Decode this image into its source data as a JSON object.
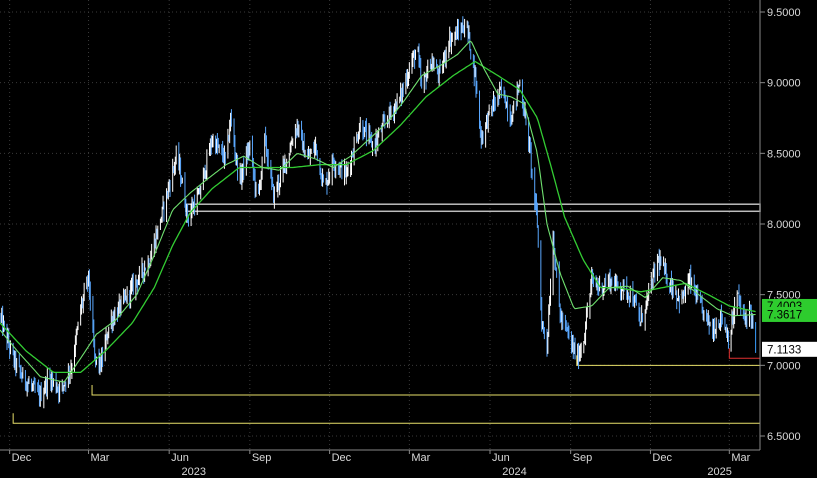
{
  "chart_data": {
    "type": "candlestick",
    "title": "",
    "xlabel": "",
    "ylabel": "",
    "ylim": [
      6.45,
      9.58
    ],
    "grid": true,
    "y_ticks": [
      "9.5000",
      "9.0000",
      "8.5000",
      "8.0000",
      "7.5000",
      "7.0000",
      "6.5000"
    ],
    "y_tick_values": [
      9.5,
      9.0,
      8.5,
      8.0,
      7.5,
      7.0,
      6.5
    ],
    "x_month_ticks": [
      "Dec",
      "Mar",
      "Jun",
      "Sep",
      "Dec",
      "Mar",
      "Jun",
      "Sep",
      "Dec",
      "Mar"
    ],
    "x_month_dates": [
      "2022-12-01",
      "2023-03-01",
      "2023-06-01",
      "2023-09-01",
      "2023-12-01",
      "2024-03-01",
      "2024-06-01",
      "2024-09-01",
      "2024-12-01",
      "2025-03-01"
    ],
    "x_year_labels": [
      "2023",
      "2024",
      "2025"
    ],
    "x_year_dates": [
      "2023-07-01",
      "2024-07-01",
      "2025-02-20"
    ],
    "x_range": [
      "2022-11-20",
      "2025-04-05"
    ],
    "price_keypoints": [
      [
        "2022-11-20",
        7.35
      ],
      [
        "2022-12-05",
        7.05
      ],
      [
        "2022-12-15",
        6.92
      ],
      [
        "2022-12-25",
        6.85
      ],
      [
        "2023-01-05",
        6.78
      ],
      [
        "2023-01-15",
        6.92
      ],
      [
        "2023-01-28",
        6.82
      ],
      [
        "2023-02-10",
        7.0
      ],
      [
        "2023-02-20",
        7.4
      ],
      [
        "2023-03-01",
        7.62
      ],
      [
        "2023-03-08",
        7.05
      ],
      [
        "2023-03-15",
        7.0
      ],
      [
        "2023-03-25",
        7.3
      ],
      [
        "2023-04-10",
        7.45
      ],
      [
        "2023-04-25",
        7.6
      ],
      [
        "2023-05-10",
        7.75
      ],
      [
        "2023-05-25",
        8.1
      ],
      [
        "2023-06-10",
        8.5
      ],
      [
        "2023-06-22",
        8.05
      ],
      [
        "2023-07-05",
        8.2
      ],
      [
        "2023-07-20",
        8.6
      ],
      [
        "2023-08-05",
        8.45
      ],
      [
        "2023-08-10",
        8.75
      ],
      [
        "2023-08-20",
        8.3
      ],
      [
        "2023-09-01",
        8.55
      ],
      [
        "2023-09-10",
        8.15
      ],
      [
        "2023-09-18",
        8.6
      ],
      [
        "2023-09-28",
        8.2
      ],
      [
        "2023-10-10",
        8.4
      ],
      [
        "2023-10-25",
        8.7
      ],
      [
        "2023-11-05",
        8.45
      ],
      [
        "2023-11-15",
        8.55
      ],
      [
        "2023-11-25",
        8.25
      ],
      [
        "2023-12-05",
        8.45
      ],
      [
        "2023-12-20",
        8.35
      ],
      [
        "2024-01-05",
        8.7
      ],
      [
        "2024-01-20",
        8.55
      ],
      [
        "2024-02-05",
        8.75
      ],
      [
        "2024-02-20",
        8.9
      ],
      [
        "2024-03-01",
        9.1
      ],
      [
        "2024-03-10",
        9.25
      ],
      [
        "2024-03-15",
        8.95
      ],
      [
        "2024-03-25",
        9.15
      ],
      [
        "2024-04-05",
        9.05
      ],
      [
        "2024-04-15",
        9.3
      ],
      [
        "2024-04-25",
        9.35
      ],
      [
        "2024-05-05",
        9.42
      ],
      [
        "2024-05-15",
        9.05
      ],
      [
        "2024-05-22",
        8.6
      ],
      [
        "2024-06-01",
        8.8
      ],
      [
        "2024-06-15",
        8.95
      ],
      [
        "2024-06-25",
        8.75
      ],
      [
        "2024-07-05",
        9.0
      ],
      [
        "2024-07-15",
        8.6
      ],
      [
        "2024-07-25",
        8.0
      ],
      [
        "2024-07-30",
        7.3
      ],
      [
        "2024-08-05",
        7.15
      ],
      [
        "2024-08-12",
        7.9
      ],
      [
        "2024-08-20",
        7.35
      ],
      [
        "2024-08-30",
        7.2
      ],
      [
        "2024-09-08",
        7.05
      ],
      [
        "2024-09-15",
        7.15
      ],
      [
        "2024-09-25",
        7.6
      ],
      [
        "2024-10-05",
        7.55
      ],
      [
        "2024-10-15",
        7.6
      ],
      [
        "2024-10-30",
        7.55
      ],
      [
        "2024-11-10",
        7.5
      ],
      [
        "2024-11-20",
        7.3
      ],
      [
        "2024-12-01",
        7.55
      ],
      [
        "2024-12-10",
        7.75
      ],
      [
        "2024-12-20",
        7.62
      ],
      [
        "2025-01-05",
        7.45
      ],
      [
        "2025-01-15",
        7.6
      ],
      [
        "2025-01-28",
        7.4
      ],
      [
        "2025-02-10",
        7.25
      ],
      [
        "2025-02-20",
        7.35
      ],
      [
        "2025-03-01",
        7.18
      ],
      [
        "2025-03-10",
        7.5
      ],
      [
        "2025-03-18",
        7.32
      ],
      [
        "2025-03-25",
        7.4
      ],
      [
        "2025-03-31",
        7.1133
      ]
    ],
    "moving_average_fast_keypoints": [
      [
        "2022-11-20",
        7.25
      ],
      [
        "2022-12-10",
        7.1
      ],
      [
        "2023-01-05",
        6.92
      ],
      [
        "2023-02-01",
        6.88
      ],
      [
        "2023-02-20",
        7.05
      ],
      [
        "2023-03-10",
        7.22
      ],
      [
        "2023-04-01",
        7.32
      ],
      [
        "2023-04-25",
        7.5
      ],
      [
        "2023-05-15",
        7.78
      ],
      [
        "2023-06-05",
        8.1
      ],
      [
        "2023-06-25",
        8.22
      ],
      [
        "2023-07-15",
        8.32
      ],
      [
        "2023-08-05",
        8.42
      ],
      [
        "2023-08-25",
        8.48
      ],
      [
        "2023-09-15",
        8.4
      ],
      [
        "2023-10-05",
        8.38
      ],
      [
        "2023-10-25",
        8.5
      ],
      [
        "2023-11-15",
        8.46
      ],
      [
        "2023-12-05",
        8.4
      ],
      [
        "2023-12-25",
        8.48
      ],
      [
        "2024-01-15",
        8.6
      ],
      [
        "2024-02-05",
        8.72
      ],
      [
        "2024-02-25",
        8.88
      ],
      [
        "2024-03-15",
        9.05
      ],
      [
        "2024-04-05",
        9.12
      ],
      [
        "2024-04-25",
        9.2
      ],
      [
        "2024-05-10",
        9.3
      ],
      [
        "2024-05-25",
        9.1
      ],
      [
        "2024-06-10",
        8.92
      ],
      [
        "2024-06-25",
        8.9
      ],
      [
        "2024-07-10",
        8.85
      ],
      [
        "2024-07-25",
        8.5
      ],
      [
        "2024-08-05",
        8.0
      ],
      [
        "2024-08-20",
        7.65
      ],
      [
        "2024-09-05",
        7.4
      ],
      [
        "2024-09-25",
        7.42
      ],
      [
        "2024-10-15",
        7.55
      ],
      [
        "2024-11-05",
        7.56
      ],
      [
        "2024-11-25",
        7.48
      ],
      [
        "2024-12-15",
        7.62
      ],
      [
        "2025-01-05",
        7.6
      ],
      [
        "2025-01-25",
        7.5
      ],
      [
        "2025-02-15",
        7.4
      ],
      [
        "2025-03-05",
        7.35
      ],
      [
        "2025-03-31",
        7.36
      ]
    ],
    "moving_average_slow_keypoints": [
      [
        "2022-11-20",
        7.3
      ],
      [
        "2022-12-20",
        7.1
      ],
      [
        "2023-01-20",
        6.95
      ],
      [
        "2023-02-20",
        6.95
      ],
      [
        "2023-03-20",
        7.1
      ],
      [
        "2023-04-20",
        7.3
      ],
      [
        "2023-05-15",
        7.55
      ],
      [
        "2023-06-05",
        7.85
      ],
      [
        "2023-06-25",
        8.08
      ],
      [
        "2023-07-20",
        8.25
      ],
      [
        "2023-08-20",
        8.4
      ],
      [
        "2023-09-20",
        8.4
      ],
      [
        "2023-10-20",
        8.4
      ],
      [
        "2023-11-20",
        8.42
      ],
      [
        "2023-12-20",
        8.42
      ],
      [
        "2024-01-20",
        8.52
      ],
      [
        "2024-02-20",
        8.7
      ],
      [
        "2024-03-20",
        8.9
      ],
      [
        "2024-04-20",
        9.05
      ],
      [
        "2024-05-15",
        9.15
      ],
      [
        "2024-06-10",
        9.05
      ],
      [
        "2024-07-05",
        8.95
      ],
      [
        "2024-07-25",
        8.75
      ],
      [
        "2024-08-10",
        8.4
      ],
      [
        "2024-08-25",
        8.05
      ],
      [
        "2024-09-15",
        7.75
      ],
      [
        "2024-10-05",
        7.55
      ],
      [
        "2024-10-25",
        7.55
      ],
      [
        "2024-11-20",
        7.52
      ],
      [
        "2024-12-15",
        7.55
      ],
      [
        "2025-01-10",
        7.58
      ],
      [
        "2025-02-05",
        7.5
      ],
      [
        "2025-03-01",
        7.42
      ],
      [
        "2025-03-31",
        7.38
      ]
    ],
    "support_lines": [
      {
        "value": 6.59,
        "from": "2022-12-05",
        "color": "#e8df6a"
      },
      {
        "value": 6.79,
        "from": "2023-03-05",
        "color": "#e8df6a"
      },
      {
        "value": 7.0,
        "from": "2024-09-08",
        "color": "#e8df6a"
      },
      {
        "value": 7.05,
        "from": "2025-03-01",
        "color": "#e03030"
      }
    ],
    "support_band": {
      "low": 8.09,
      "high": 8.14,
      "from": "2023-06-20"
    },
    "labels": {
      "current": "7.1133",
      "moving_average": "7.3617",
      "moving_average_hidden": "7.4003"
    },
    "colors": {
      "background": "#000000",
      "candle": "#ffffff",
      "fast_ma": "#ffffff",
      "slow_ma": "#33cc33",
      "grid": "#3a3a3a",
      "badge_ma": "#2ecc2e",
      "badge_current": "#ffffff"
    }
  }
}
